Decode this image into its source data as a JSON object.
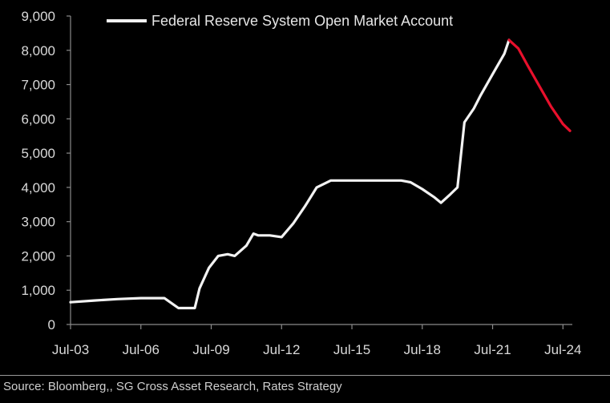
{
  "chart_data": {
    "type": "line",
    "title": "",
    "xlabel": "",
    "ylabel": "",
    "legend": {
      "label": "Federal Reserve System Open Market Account",
      "position": "top"
    },
    "x_tick_labels": [
      "Jul-03",
      "Jul-06",
      "Jul-09",
      "Jul-12",
      "Jul-15",
      "Jul-18",
      "Jul-21",
      "Jul-24"
    ],
    "x_tick_values": [
      2003.5,
      2006.5,
      2009.5,
      2012.5,
      2015.5,
      2018.5,
      2021.5,
      2024.5
    ],
    "xlim": [
      2003.5,
      2024.9
    ],
    "y_tick_labels": [
      "0",
      "1,000",
      "2,000",
      "3,000",
      "4,000",
      "5,000",
      "6,000",
      "7,000",
      "8,000",
      "9,000"
    ],
    "ylim": [
      0,
      9000
    ],
    "grid": false,
    "colors": {
      "series": "#f2f2f2",
      "projection": "#e8102c",
      "axis": "#8a8a8a",
      "background": "#000000"
    },
    "series": [
      {
        "name": "Federal Reserve System Open Market Account",
        "x": [
          2003.5,
          2004.5,
          2005.5,
          2006.5,
          2007.5,
          2008.1,
          2008.8,
          2009.0,
          2009.4,
          2009.8,
          2010.2,
          2010.5,
          2011.0,
          2011.3,
          2011.5,
          2012.0,
          2012.5,
          2013.0,
          2013.5,
          2014.0,
          2014.6,
          2015.0,
          2016.0,
          2017.0,
          2017.6,
          2018.0,
          2018.5,
          2019.0,
          2019.3,
          2019.7,
          2020.0,
          2020.3,
          2020.7,
          2021.0,
          2021.5,
          2022.0,
          2022.2
        ],
        "values": [
          650,
          700,
          740,
          770,
          770,
          480,
          480,
          1050,
          1650,
          2000,
          2050,
          2000,
          2300,
          2650,
          2600,
          2600,
          2550,
          2950,
          3450,
          4000,
          4200,
          4200,
          4200,
          4200,
          4200,
          4150,
          3950,
          3720,
          3550,
          3800,
          4000,
          5900,
          6300,
          6700,
          7300,
          7900,
          8300
        ]
      },
      {
        "name": "",
        "role": "projection",
        "x": [
          2022.2,
          2022.6,
          2023.0,
          2023.5,
          2024.0,
          2024.5,
          2024.8
        ],
        "values": [
          8300,
          8050,
          7550,
          6950,
          6350,
          5850,
          5650
        ]
      }
    ]
  },
  "footer": {
    "source": "Source:  Bloomberg,, SG Cross Asset Research, Rates Strategy"
  }
}
